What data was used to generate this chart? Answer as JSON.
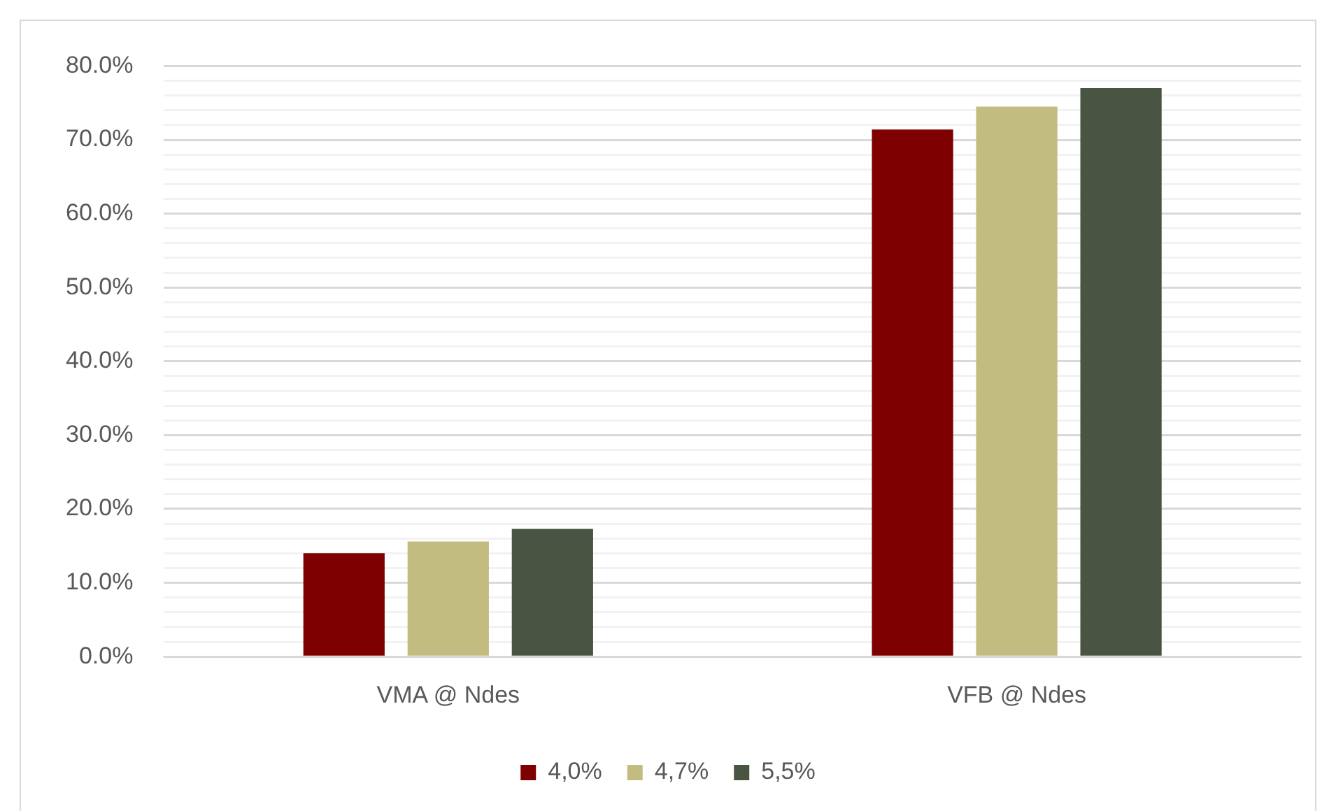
{
  "chart_data": {
    "type": "bar",
    "categories": [
      "VMA @ Ndes",
      "VFB @ Ndes"
    ],
    "series": [
      {
        "name": "4,0%",
        "color": "#7f0000",
        "values": [
          14.0,
          71.4
        ]
      },
      {
        "name": "4,7%",
        "color": "#c3bc80",
        "values": [
          15.6,
          74.5
        ]
      },
      {
        "name": "5,5%",
        "color": "#4a5442",
        "values": [
          17.3,
          77.0
        ]
      }
    ],
    "ylim": [
      0,
      80
    ],
    "yticks": [
      {
        "value": 0,
        "label": "0.0%"
      },
      {
        "value": 2,
        "label": null
      },
      {
        "value": 4,
        "label": null
      },
      {
        "value": 6,
        "label": null
      },
      {
        "value": 8,
        "label": null
      },
      {
        "value": 10,
        "label": "10.0%"
      },
      {
        "value": 12,
        "label": null
      },
      {
        "value": 14,
        "label": null
      },
      {
        "value": 16,
        "label": null
      },
      {
        "value": 18,
        "label": null
      },
      {
        "value": 20,
        "label": "20.0%"
      },
      {
        "value": 22,
        "label": null
      },
      {
        "value": 24,
        "label": null
      },
      {
        "value": 26,
        "label": null
      },
      {
        "value": 28,
        "label": null
      },
      {
        "value": 30,
        "label": "30.0%"
      },
      {
        "value": 32,
        "label": null
      },
      {
        "value": 34,
        "label": null
      },
      {
        "value": 36,
        "label": null
      },
      {
        "value": 38,
        "label": null
      },
      {
        "value": 40,
        "label": "40.0%"
      },
      {
        "value": 42,
        "label": null
      },
      {
        "value": 44,
        "label": null
      },
      {
        "value": 46,
        "label": null
      },
      {
        "value": 48,
        "label": null
      },
      {
        "value": 50,
        "label": "50.0%"
      },
      {
        "value": 52,
        "label": null
      },
      {
        "value": 54,
        "label": null
      },
      {
        "value": 56,
        "label": null
      },
      {
        "value": 58,
        "label": null
      },
      {
        "value": 60,
        "label": "60.0%"
      },
      {
        "value": 62,
        "label": null
      },
      {
        "value": 64,
        "label": null
      },
      {
        "value": 66,
        "label": null
      },
      {
        "value": 68,
        "label": null
      },
      {
        "value": 70,
        "label": "70.0%"
      },
      {
        "value": 72,
        "label": null
      },
      {
        "value": 74,
        "label": null
      },
      {
        "value": 76,
        "label": null
      },
      {
        "value": 78,
        "label": null
      },
      {
        "value": 80,
        "label": "80.0%"
      }
    ],
    "grid": "y",
    "legend": "bottom"
  }
}
